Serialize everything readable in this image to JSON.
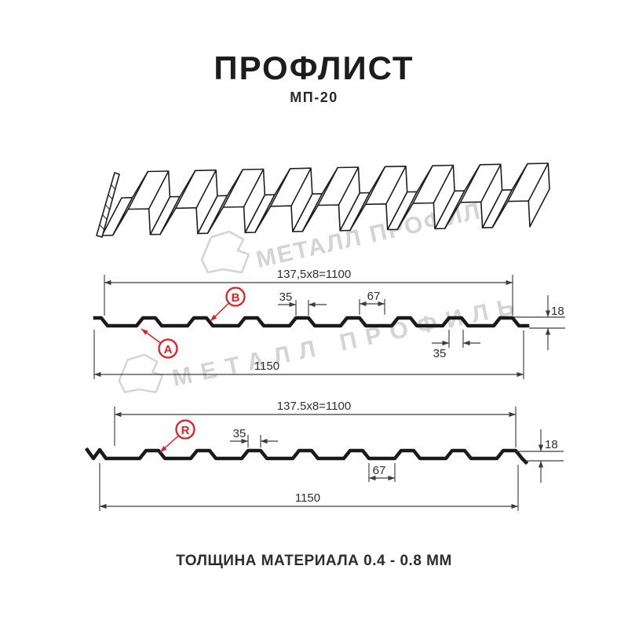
{
  "header": {
    "title": "ПРОФЛИСТ",
    "subtitle": "МП-20"
  },
  "watermark": {
    "brand": "МЕТАЛЛ ПРОФИЛЬ"
  },
  "diagrams": {
    "top": {
      "working_width": "137,5x8=1100",
      "total_width": "1150",
      "crest_width": "35",
      "crest_spacing": "67",
      "profile_height": "18",
      "crest_width_bottom": "35",
      "marker_a": "A",
      "marker_b": "B"
    },
    "bottom": {
      "working_width": "137.5x8=1100",
      "total_width": "1150",
      "crest_width": "35",
      "valley_width": "67",
      "profile_height": "18",
      "marker_r": "R"
    }
  },
  "footer": {
    "note": "ТОЛЩИНА МАТЕРИАЛА 0.4 - 0.8 ММ"
  },
  "colors": {
    "accent_red": "#e31e24",
    "line_black": "#1a1a1a",
    "dim_gray": "#3d3d3d",
    "watermark_gray": "#d4d4d4"
  }
}
